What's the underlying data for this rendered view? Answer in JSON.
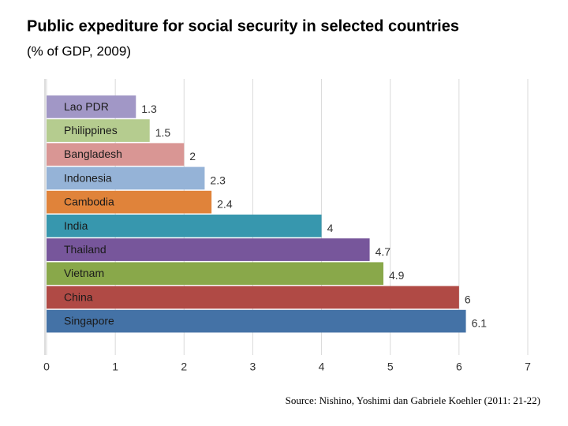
{
  "chart_data": {
    "type": "bar",
    "orientation": "horizontal",
    "title": "Public expediture for social security in selected countries",
    "subtitle": "(% of GDP, 2009)",
    "categories": [
      "Lao PDR",
      "Philippines",
      "Bangladesh",
      "Indonesia",
      "Cambodia",
      "India",
      "Thailand",
      "Vietnam",
      "China",
      "Singapore"
    ],
    "values": [
      1.3,
      1.5,
      2,
      2.3,
      2.4,
      4,
      4.7,
      4.9,
      6,
      6.1
    ],
    "colors": [
      "#a197c6",
      "#b5cc8f",
      "#d99694",
      "#95b3d7",
      "#e0833a",
      "#3797ae",
      "#77569b",
      "#89a84a",
      "#b04a45",
      "#4472a6"
    ],
    "xlim": [
      0,
      7
    ],
    "xticks": [
      0,
      1,
      2,
      3,
      4,
      5,
      6,
      7
    ],
    "grid": true,
    "source": "Source: Nishino, Yoshimi dan Gabriele Koehler (2011: 21-22)"
  }
}
